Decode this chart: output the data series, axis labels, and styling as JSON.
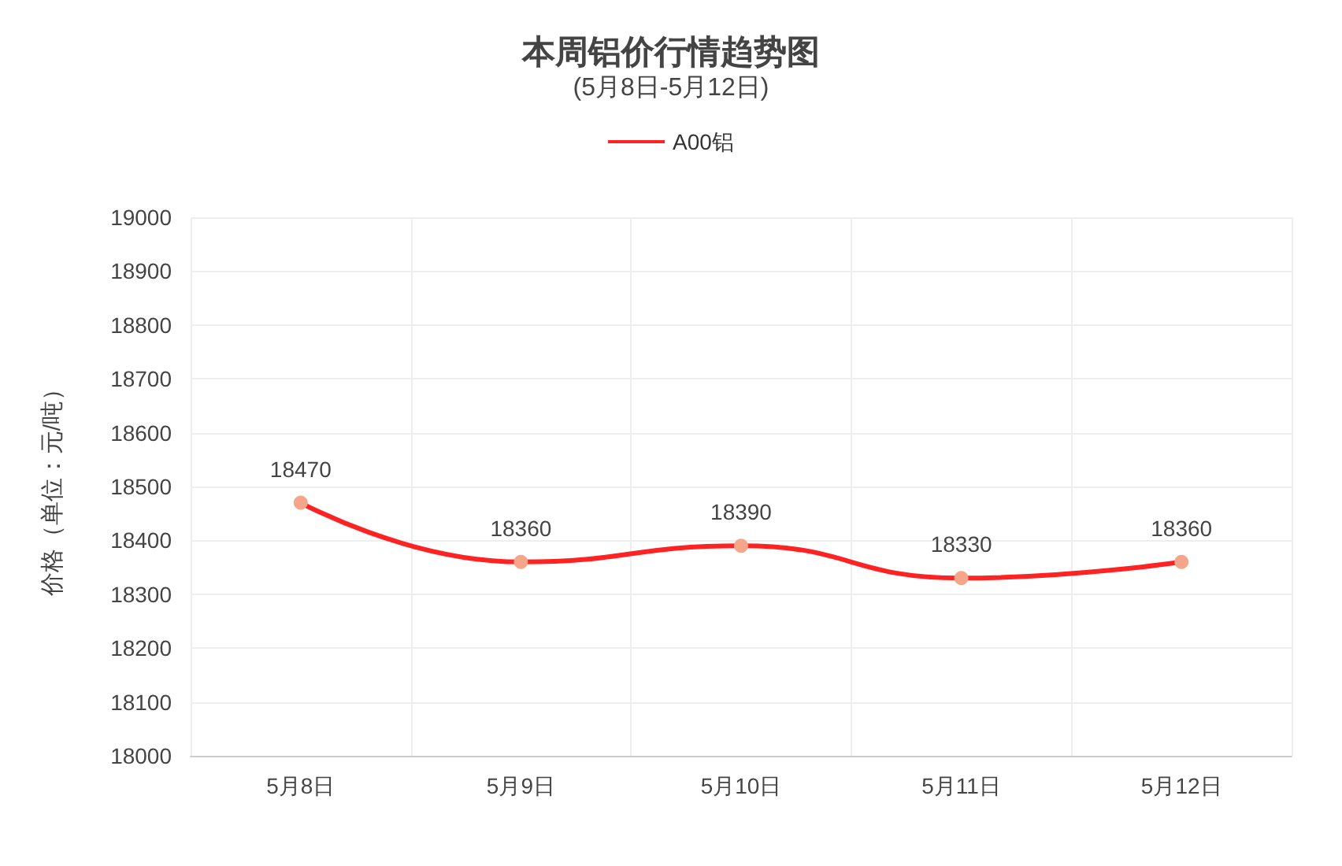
{
  "chart_data": {
    "type": "line",
    "title": "本周铝价行情趋势图",
    "subtitle": "(5月8日-5月12日)",
    "ylabel": "价格（单位：元/吨）",
    "categories": [
      "5月8日",
      "5月9日",
      "5月10日",
      "5月11日",
      "5月12日"
    ],
    "series": [
      {
        "name": "A00铝",
        "color": "#ff2222",
        "values": [
          18470,
          18360,
          18390,
          18330,
          18360
        ]
      }
    ],
    "ylim": [
      18000,
      19000
    ],
    "yticks": [
      18000,
      18100,
      18200,
      18300,
      18400,
      18500,
      18600,
      18700,
      18800,
      18900,
      19000
    ],
    "grid": true,
    "legend": "top",
    "marker": "circle",
    "line_style": "solid",
    "data_labels": true
  }
}
